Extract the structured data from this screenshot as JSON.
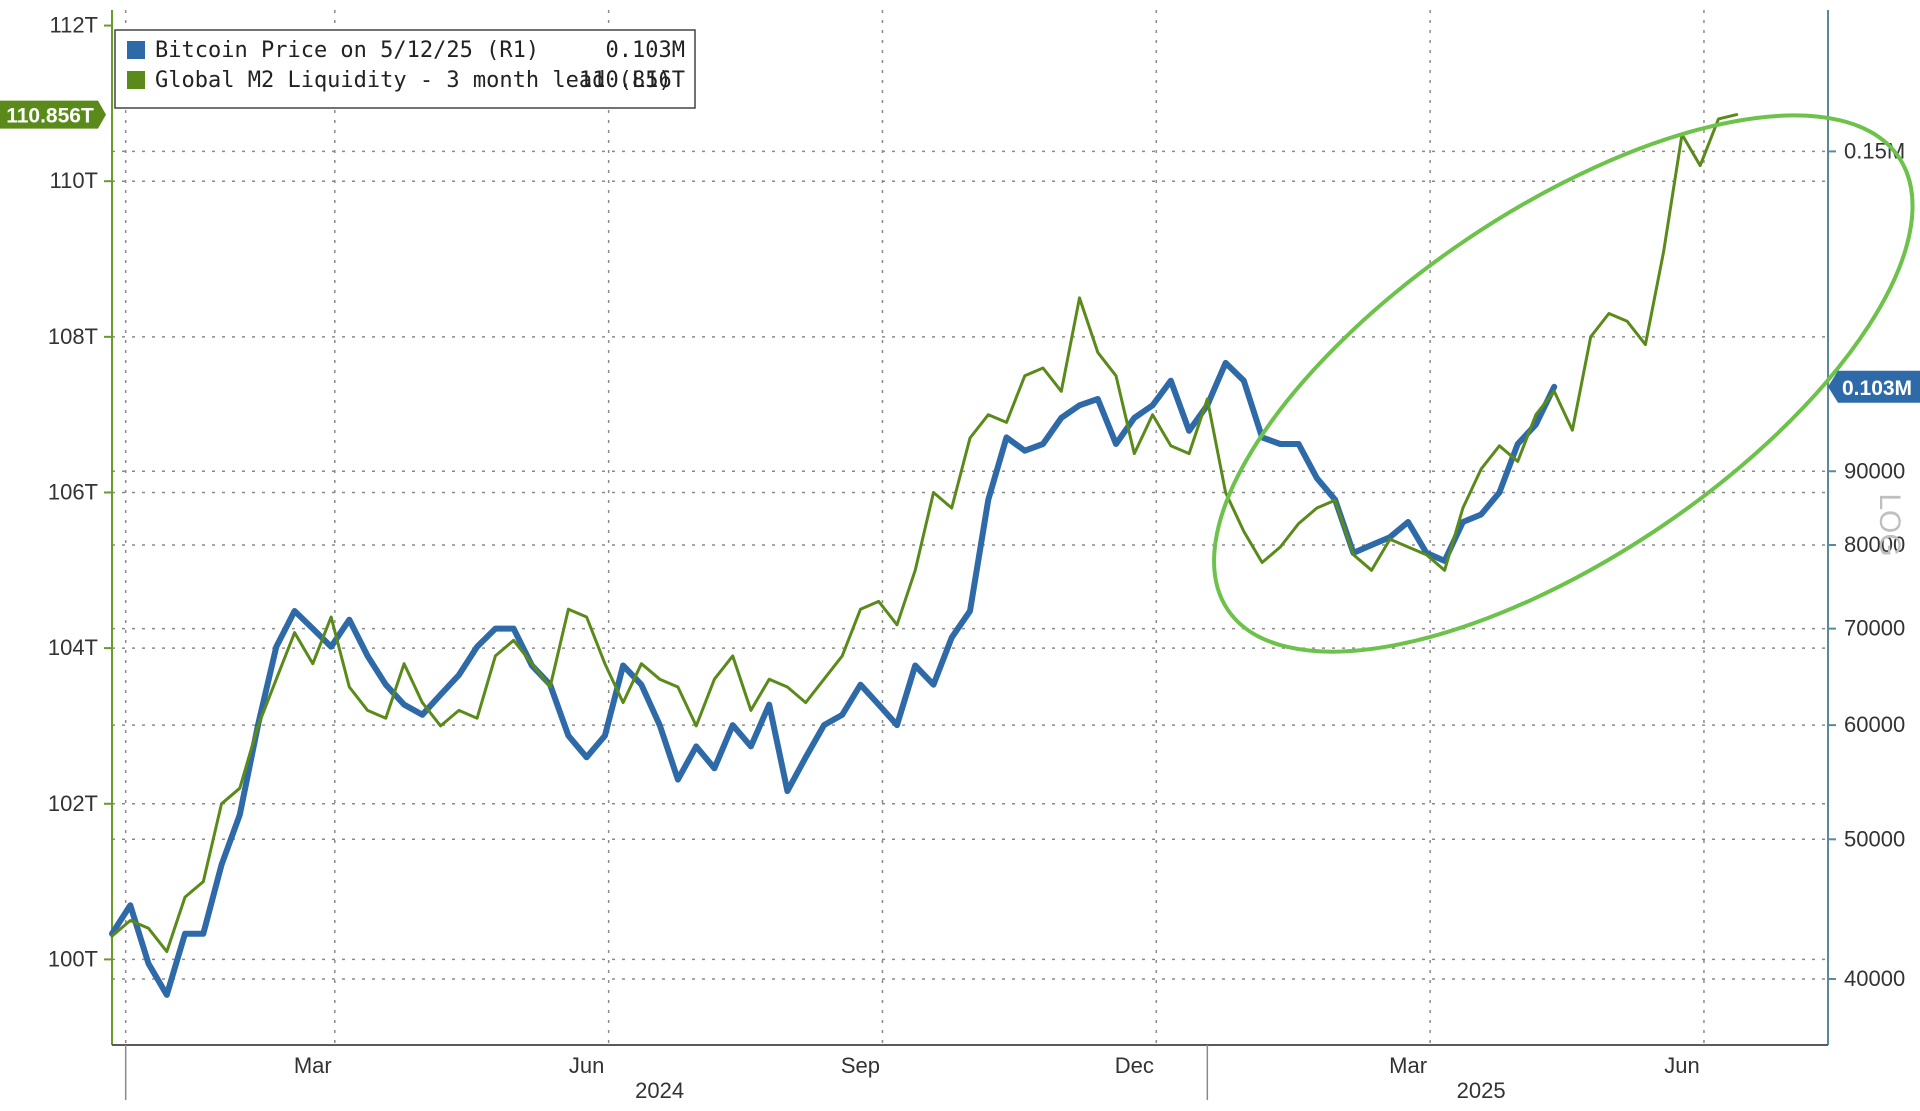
{
  "chart_data": {
    "type": "line",
    "scale_label": "LOG",
    "legend": {
      "placement": "top-left",
      "entries": [
        {
          "label": "Bitcoin Price on 5/12/25 (R1)",
          "value": "0.103M",
          "color": "#2f6aa8"
        },
        {
          "label": "Global M2 Liquidity - 3 month lead (L1)",
          "value": "110.856T",
          "color": "#5a8a1a"
        }
      ]
    },
    "x_axis": {
      "months": [
        "Mar",
        "Jun",
        "Sep",
        "Dec",
        "Mar",
        "Jun"
      ],
      "month_pos": [
        2.2,
        5.2,
        8.2,
        11.2,
        14.2,
        17.2
      ],
      "years": [
        "2024",
        "2025"
      ],
      "year_pos": [
        6.0,
        15.0
      ],
      "xlim": [
        0,
        18.8
      ],
      "year_divider_pos": 12
    },
    "left_axis": {
      "ticks": [
        "112T",
        "110T",
        "108T",
        "106T",
        "104T",
        "102T",
        "100T"
      ],
      "tick_values": [
        112,
        110,
        108,
        106,
        104,
        102,
        100
      ],
      "ylim": [
        98.9,
        112.2
      ],
      "current_tag": "110.856T"
    },
    "right_axis": {
      "ticks": [
        "0.15M",
        "90000",
        "80000",
        "70000",
        "60000",
        "50000",
        "40000"
      ],
      "tick_values": [
        150000,
        90000,
        80000,
        70000,
        60000,
        50000,
        40000
      ],
      "log": true,
      "ylim": [
        36000,
        188000
      ],
      "current_tag": "0.103M"
    },
    "grid": true,
    "colors": {
      "btc": "#2f6aa8",
      "m2": "#5a8a1a",
      "highlight": "#6cc24a",
      "axis": "#5a8a9a"
    },
    "series": [
      {
        "name": "Bitcoin Price on 5/12/25 (R1)",
        "axis": "right",
        "x": [
          0,
          0.2,
          0.4,
          0.6,
          0.8,
          1.0,
          1.2,
          1.4,
          1.6,
          1.8,
          2.0,
          2.2,
          2.4,
          2.6,
          2.8,
          3.0,
          3.2,
          3.4,
          3.6,
          3.8,
          4.0,
          4.2,
          4.4,
          4.6,
          4.8,
          5.0,
          5.2,
          5.4,
          5.6,
          5.8,
          6.0,
          6.2,
          6.4,
          6.6,
          6.8,
          7.0,
          7.2,
          7.4,
          7.6,
          7.8,
          8.0,
          8.2,
          8.4,
          8.6,
          8.8,
          9.0,
          9.2,
          9.4,
          9.6,
          9.8,
          10.0,
          10.2,
          10.4,
          10.6,
          10.8,
          11.0,
          11.2,
          11.4,
          11.6,
          11.8,
          12.0,
          12.2,
          12.4,
          12.6,
          12.8,
          13.0,
          13.2,
          13.4,
          13.6,
          13.8,
          14.0,
          14.2,
          14.4,
          14.6,
          14.8,
          15.0,
          15.2,
          15.4,
          15.6,
          15.8
        ],
        "y": [
          43000,
          45000,
          41000,
          39000,
          43000,
          43000,
          48000,
          52000,
          60000,
          68000,
          72000,
          70000,
          68000,
          71000,
          67000,
          64000,
          62000,
          61000,
          63000,
          65000,
          68000,
          70000,
          70000,
          66000,
          64000,
          59000,
          57000,
          59000,
          66000,
          64000,
          60000,
          55000,
          58000,
          56000,
          60000,
          58000,
          62000,
          54000,
          57000,
          60000,
          61000,
          64000,
          62000,
          60000,
          66000,
          64000,
          69000,
          72000,
          86000,
          95000,
          93000,
          94000,
          98000,
          100000,
          101000,
          94000,
          98000,
          100000,
          104000,
          96000,
          100000,
          107000,
          104000,
          95000,
          94000,
          94000,
          89000,
          86000,
          79000,
          80000,
          81000,
          83000,
          79000,
          78000,
          83000,
          84000,
          87000,
          94000,
          97000,
          103000
        ]
      },
      {
        "name": "Global M2 Liquidity - 3 month lead (L1)",
        "axis": "left",
        "x": [
          0,
          0.2,
          0.4,
          0.6,
          0.8,
          1.0,
          1.2,
          1.4,
          1.6,
          1.8,
          2.0,
          2.2,
          2.4,
          2.6,
          2.8,
          3.0,
          3.2,
          3.4,
          3.6,
          3.8,
          4.0,
          4.2,
          4.4,
          4.6,
          4.8,
          5.0,
          5.2,
          5.4,
          5.6,
          5.8,
          6.0,
          6.2,
          6.4,
          6.6,
          6.8,
          7.0,
          7.2,
          7.4,
          7.6,
          7.8,
          8.0,
          8.2,
          8.4,
          8.6,
          8.8,
          9.0,
          9.2,
          9.4,
          9.6,
          9.8,
          10.0,
          10.2,
          10.4,
          10.6,
          10.8,
          11.0,
          11.2,
          11.4,
          11.6,
          11.8,
          12.0,
          12.2,
          12.4,
          12.6,
          12.8,
          13.0,
          13.2,
          13.4,
          13.6,
          13.8,
          14.0,
          14.2,
          14.4,
          14.6,
          14.8,
          15.0,
          15.2,
          15.4,
          15.6,
          15.8,
          16.0,
          16.2,
          16.4,
          16.6,
          16.8,
          17.0,
          17.2,
          17.4,
          17.6,
          17.8
        ],
        "y": [
          100.3,
          100.5,
          100.4,
          100.1,
          100.8,
          101.0,
          102.0,
          102.2,
          103.0,
          103.6,
          104.2,
          103.8,
          104.4,
          103.5,
          103.2,
          103.1,
          103.8,
          103.3,
          103.0,
          103.2,
          103.1,
          103.9,
          104.1,
          103.8,
          103.5,
          104.5,
          104.4,
          103.8,
          103.3,
          103.8,
          103.6,
          103.5,
          103.0,
          103.6,
          103.9,
          103.2,
          103.6,
          103.5,
          103.3,
          103.6,
          103.9,
          104.5,
          104.6,
          104.3,
          105.0,
          106.0,
          105.8,
          106.7,
          107.0,
          106.9,
          107.5,
          107.6,
          107.3,
          108.5,
          107.8,
          107.5,
          106.5,
          107.0,
          106.6,
          106.5,
          107.2,
          106.0,
          105.5,
          105.1,
          105.3,
          105.6,
          105.8,
          105.9,
          105.2,
          105.0,
          105.4,
          105.3,
          105.2,
          105.0,
          105.8,
          106.3,
          106.6,
          106.4,
          107.0,
          107.3,
          106.8,
          108.0,
          108.3,
          108.2,
          107.9,
          109.1,
          110.6,
          110.2,
          110.8,
          110.856
        ]
      }
    ],
    "highlight_ellipse": {
      "center": [
        15.9,
        107.4
      ],
      "radius_x": 1.9,
      "radius_y": 5.2,
      "rotation_deg": -14
    }
  }
}
